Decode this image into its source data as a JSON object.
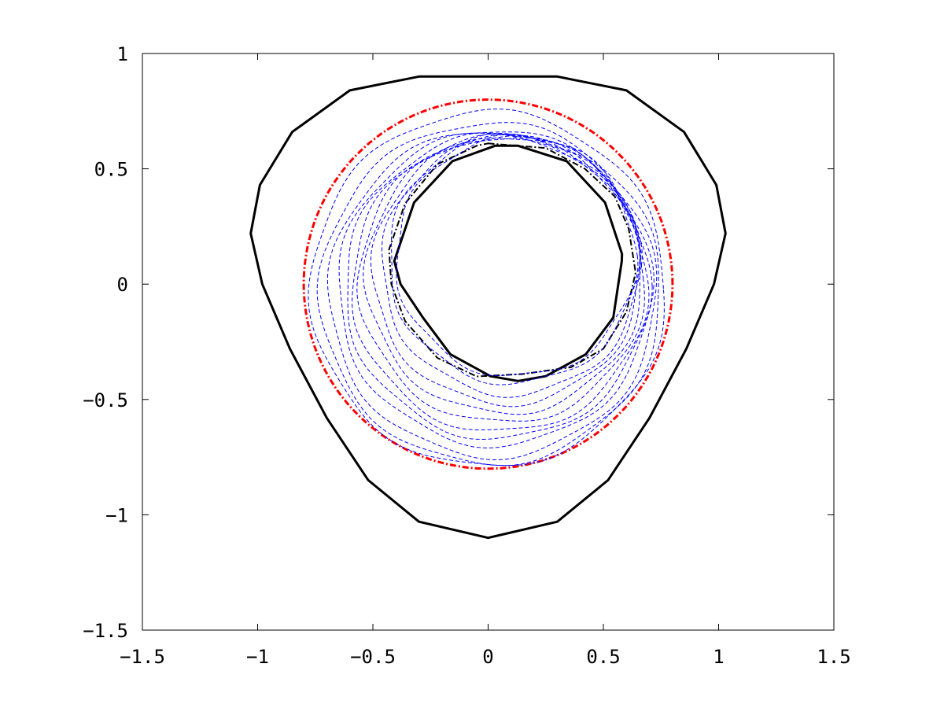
{
  "chart_data": {
    "type": "line",
    "title": "",
    "xlabel": "",
    "ylabel": "",
    "xlim": [
      -1.5,
      1.5
    ],
    "ylim": [
      -1.5,
      1.0
    ],
    "grid": false,
    "legend": "none",
    "x_ticks": [
      {
        "value": -1.5,
        "label": "−1.5"
      },
      {
        "value": -1.0,
        "label": "−1"
      },
      {
        "value": -0.5,
        "label": "−0.5"
      },
      {
        "value": 0.0,
        "label": "0"
      },
      {
        "value": 0.5,
        "label": "0.5"
      },
      {
        "value": 1.0,
        "label": "1"
      },
      {
        "value": 1.5,
        "label": "1.5"
      }
    ],
    "y_ticks": [
      {
        "value": 1.0,
        "label": "1"
      },
      {
        "value": 0.5,
        "label": "0.5"
      },
      {
        "value": 0.0,
        "label": "0"
      },
      {
        "value": -0.5,
        "label": "−0.5"
      },
      {
        "value": -1.0,
        "label": "−1"
      },
      {
        "value": -1.5,
        "label": "−1.5"
      }
    ],
    "series": [
      {
        "style": "solid",
        "color": "#000000",
        "points": [
          [
            0.0,
            0.9
          ],
          [
            0.3,
            0.9
          ],
          [
            0.6,
            0.84
          ],
          [
            0.85,
            0.66
          ],
          [
            0.99,
            0.43
          ],
          [
            1.03,
            0.22
          ],
          [
            0.98,
            0.0
          ],
          [
            0.86,
            -0.28
          ],
          [
            0.7,
            -0.58
          ],
          [
            0.52,
            -0.85
          ],
          [
            0.3,
            -1.03
          ],
          [
            0.0,
            -1.1
          ],
          [
            -0.3,
            -1.03
          ],
          [
            -0.52,
            -0.85
          ],
          [
            -0.7,
            -0.58
          ],
          [
            -0.86,
            -0.28
          ],
          [
            -0.98,
            0.0
          ],
          [
            -1.03,
            0.22
          ],
          [
            -0.99,
            0.43
          ],
          [
            -0.85,
            0.66
          ],
          [
            -0.6,
            0.84
          ],
          [
            -0.3,
            0.9
          ]
        ]
      },
      {
        "style": "solid",
        "color": "#000000",
        "points": [
          [
            0.13,
            0.6
          ],
          [
            0.341,
            0.533
          ],
          [
            0.507,
            0.354
          ],
          [
            0.581,
            0.131
          ],
          [
            0.58,
            0.1
          ],
          [
            0.543,
            -0.145
          ],
          [
            0.424,
            -0.304
          ],
          [
            0.25,
            -0.399
          ],
          [
            0.13,
            -0.42
          ],
          [
            0.01,
            -0.399
          ],
          [
            -0.164,
            -0.304
          ],
          [
            -0.283,
            -0.145
          ],
          [
            -0.38,
            0.0
          ],
          [
            -0.407,
            0.1
          ],
          [
            -0.321,
            0.354
          ],
          [
            -0.155,
            0.533
          ],
          [
            0.03,
            0.6
          ]
        ]
      },
      {
        "style": "dashdot",
        "color": "#000000",
        "points": [
          [
            0.0,
            0.61
          ],
          [
            0.25,
            0.59
          ],
          [
            0.42,
            0.5
          ],
          [
            0.55,
            0.38
          ],
          [
            0.61,
            0.24
          ],
          [
            0.64,
            0.05
          ],
          [
            0.6,
            -0.12
          ],
          [
            0.5,
            -0.28
          ],
          [
            0.36,
            -0.36
          ],
          [
            0.15,
            -0.39
          ],
          [
            -0.05,
            -0.4
          ],
          [
            -0.22,
            -0.32
          ],
          [
            -0.36,
            -0.16
          ],
          [
            -0.42,
            0.0
          ],
          [
            -0.43,
            0.15
          ],
          [
            -0.36,
            0.35
          ],
          [
            -0.22,
            0.52
          ],
          [
            -0.05,
            0.6
          ]
        ]
      },
      {
        "style": "dashdot",
        "color": "#ff0000",
        "center": [
          0.0,
          0.0
        ],
        "radius": 0.8
      },
      {
        "style": "dashed",
        "color": "#0000ff",
        "center": [
          0.0,
          -0.02
        ],
        "radius": 0.77
      },
      {
        "style": "dashed",
        "color": "#0000ff",
        "center": [
          0.01,
          -0.04
        ],
        "radius": 0.74
      },
      {
        "style": "dashed",
        "color": "#0000ff",
        "center": [
          0.02,
          -0.04
        ],
        "radius": 0.71
      },
      {
        "style": "dashed",
        "color": "#0000ff",
        "center": [
          0.03,
          -0.02
        ],
        "radius": 0.68
      },
      {
        "style": "dashed",
        "color": "#0000ff",
        "center": [
          0.04,
          -0.01
        ],
        "radius": 0.66
      },
      {
        "style": "dashed",
        "color": "#0000ff",
        "center": [
          0.05,
          0.0
        ],
        "radius": 0.64
      },
      {
        "style": "dashed",
        "color": "#0000ff",
        "center": [
          0.06,
          0.02
        ],
        "radius": 0.62
      },
      {
        "style": "dashed",
        "color": "#0000ff",
        "center": [
          0.07,
          0.04
        ],
        "radius": 0.6
      },
      {
        "style": "dashed",
        "color": "#0000ff",
        "center": [
          0.08,
          0.06
        ],
        "radius": 0.58
      },
      {
        "style": "dashed",
        "color": "#0000ff",
        "center": [
          0.1,
          0.08
        ],
        "radius": 0.56
      },
      {
        "style": "dashed",
        "color": "#0000ff",
        "center": [
          0.11,
          0.11
        ],
        "radius": 0.54
      },
      {
        "style": "dashed",
        "color": "#0000ff",
        "center": [
          0.12,
          0.12
        ],
        "radius": 0.52
      }
    ]
  }
}
